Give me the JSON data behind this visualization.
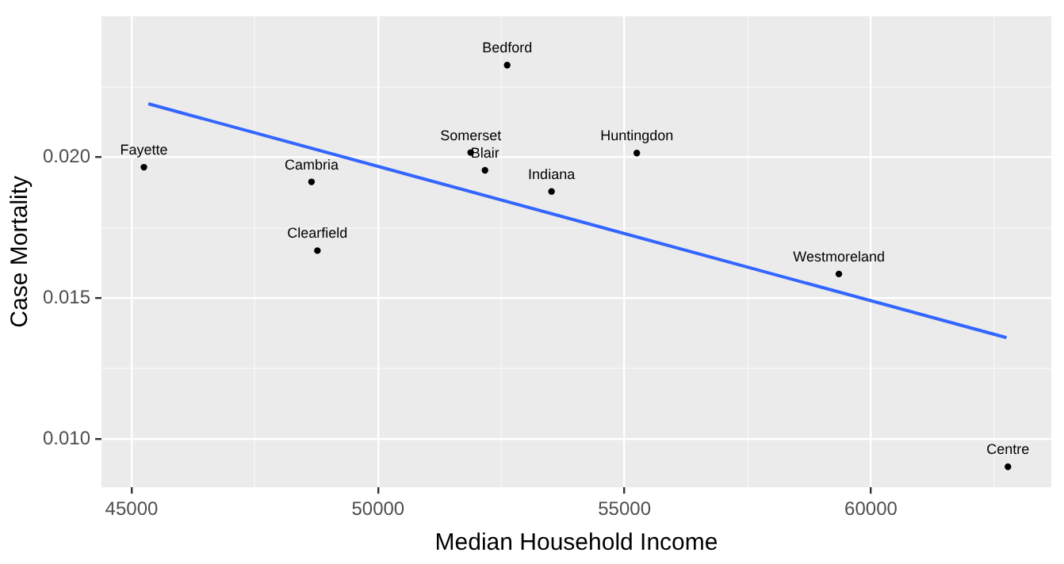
{
  "chart_data": {
    "type": "scatter",
    "xlabel": "Median Household Income",
    "ylabel": "Case Mortality",
    "series": [
      {
        "marker": "circle",
        "color": "#000000",
        "x": [
          45250,
          48650,
          48770,
          52620,
          51880,
          52170,
          53520,
          55250,
          59350,
          62780
        ],
        "values": [
          0.01965,
          0.01913,
          0.01669,
          0.02327,
          0.02017,
          0.01954,
          0.01879,
          0.02015,
          0.01586,
          0.00902
        ]
      },
      {
        "type": "line",
        "color": "#3366ff",
        "x": [
          45340,
          62750
        ],
        "values": [
          0.0219,
          0.0136
        ]
      }
    ],
    "annotations": [
      {
        "text": "Fayette",
        "x": 45250,
        "y": 0.01965
      },
      {
        "text": "Cambria",
        "x": 48650,
        "y": 0.01913
      },
      {
        "text": "Clearfield",
        "x": 48770,
        "y": 0.01669
      },
      {
        "text": "Bedford",
        "x": 52620,
        "y": 0.02327
      },
      {
        "text": "Somerset",
        "x": 51880,
        "y": 0.02017
      },
      {
        "text": "Blair",
        "x": 52170,
        "y": 0.01954
      },
      {
        "text": "Indiana",
        "x": 53520,
        "y": 0.01879
      },
      {
        "text": "Huntingdon",
        "x": 55250,
        "y": 0.02015
      },
      {
        "text": "Westmoreland",
        "x": 59350,
        "y": 0.01586
      },
      {
        "text": "Centre",
        "x": 62780,
        "y": 0.00902
      }
    ],
    "xlim": [
      44390,
      63660
    ],
    "xticks": [
      45000,
      {
        "value": 47500,
        "label": null
      },
      50000,
      {
        "value": 52500,
        "label": null
      },
      55000,
      {
        "value": 57500,
        "label": null
      },
      60000,
      {
        "value": 62500,
        "label": null
      }
    ],
    "ylim": [
      0.00829,
      0.02501
    ],
    "yticks": [
      {
        "value": 0.01,
        "label": "0.010"
      },
      {
        "value": 0.0125,
        "label": null
      },
      0.015,
      {
        "value": 0.0175,
        "label": null
      },
      {
        "value": 0.02,
        "label": "0.020"
      },
      {
        "value": 0.0225,
        "label": null
      }
    ],
    "grid": true,
    "legend": false
  }
}
